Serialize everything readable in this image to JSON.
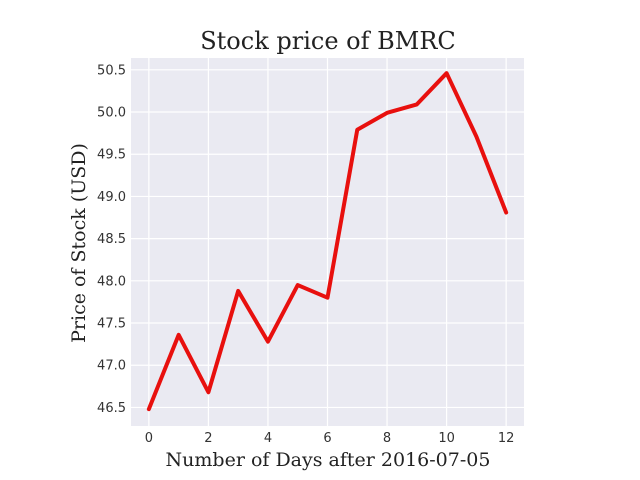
{
  "chart_data": {
    "type": "line",
    "title": "Stock price of BMRC",
    "xlabel": "Number of Days after 2016-07-05",
    "ylabel": "Price of Stock (USD)",
    "x": [
      0,
      1,
      2,
      3,
      4,
      5,
      6,
      7,
      8,
      9,
      10,
      11,
      12
    ],
    "series": [
      {
        "values": [
          46.48,
          47.36,
          46.68,
          47.88,
          47.28,
          47.95,
          47.8,
          49.79,
          49.99,
          50.09,
          50.46,
          49.71,
          48.81
        ],
        "color": "#e8100e"
      }
    ],
    "xlim": [
      -0.6,
      12.6
    ],
    "ylim": [
      46.28,
      50.64
    ],
    "xticks": [
      0,
      2,
      4,
      6,
      8,
      10,
      12
    ],
    "yticks": [
      46.5,
      47.0,
      47.5,
      48.0,
      48.5,
      49.0,
      49.5,
      50.0,
      50.5
    ],
    "xtick_labels": [
      "0",
      "2",
      "4",
      "6",
      "8",
      "10",
      "12"
    ],
    "ytick_labels": [
      "46.5",
      "47.0",
      "47.5",
      "48.0",
      "48.5",
      "49.0",
      "49.5",
      "50.0",
      "50.5"
    ],
    "grid": true,
    "background_color": "#eaeaf2",
    "grid_color": "#ffffff"
  }
}
